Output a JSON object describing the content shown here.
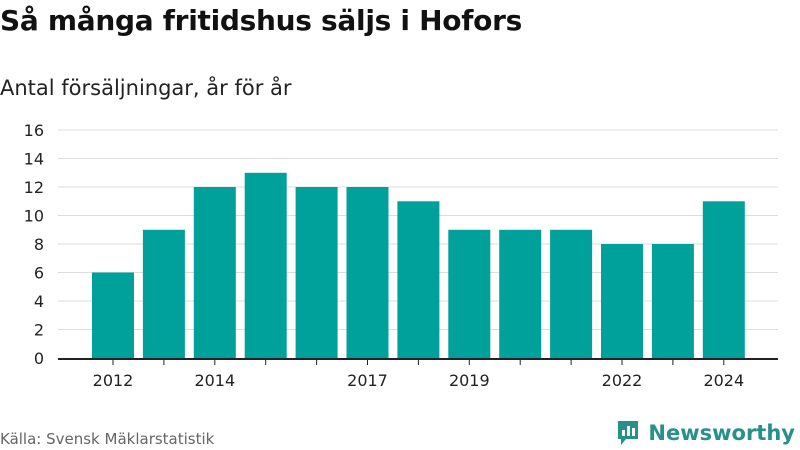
{
  "title": "Så många fritidshus säljs i Hofors",
  "subtitle": "Antal försäljningar, år för år",
  "source": "Källa: Svensk Mäklarstatistik",
  "brand": {
    "name": "Newsworthy",
    "icon": "newsworthy-logo-icon"
  },
  "colors": {
    "bar": "#00A19A",
    "grid": "#dddddd",
    "axis": "#222222",
    "brand": "#26908a"
  },
  "chart_data": {
    "type": "bar",
    "title": "Så många fritidshus säljs i Hofors",
    "subtitle": "Antal försäljningar, år för år",
    "xlabel": "",
    "ylabel": "",
    "categories": [
      "2012",
      "2013",
      "2014",
      "2015",
      "2016",
      "2017",
      "2018",
      "2019",
      "2020",
      "2021",
      "2022",
      "2023",
      "2024"
    ],
    "x_tick_labels": [
      "2012",
      "",
      "2014",
      "",
      "",
      "2017",
      "",
      "2019",
      "",
      "",
      "2022",
      "",
      "2024"
    ],
    "values": [
      6,
      9,
      12,
      13,
      12,
      12,
      11,
      9,
      9,
      9,
      8,
      8,
      11
    ],
    "ylim": [
      0,
      16
    ],
    "yticks": [
      0,
      2,
      4,
      6,
      8,
      10,
      12,
      14,
      16
    ],
    "grid": true,
    "legend": "none"
  }
}
